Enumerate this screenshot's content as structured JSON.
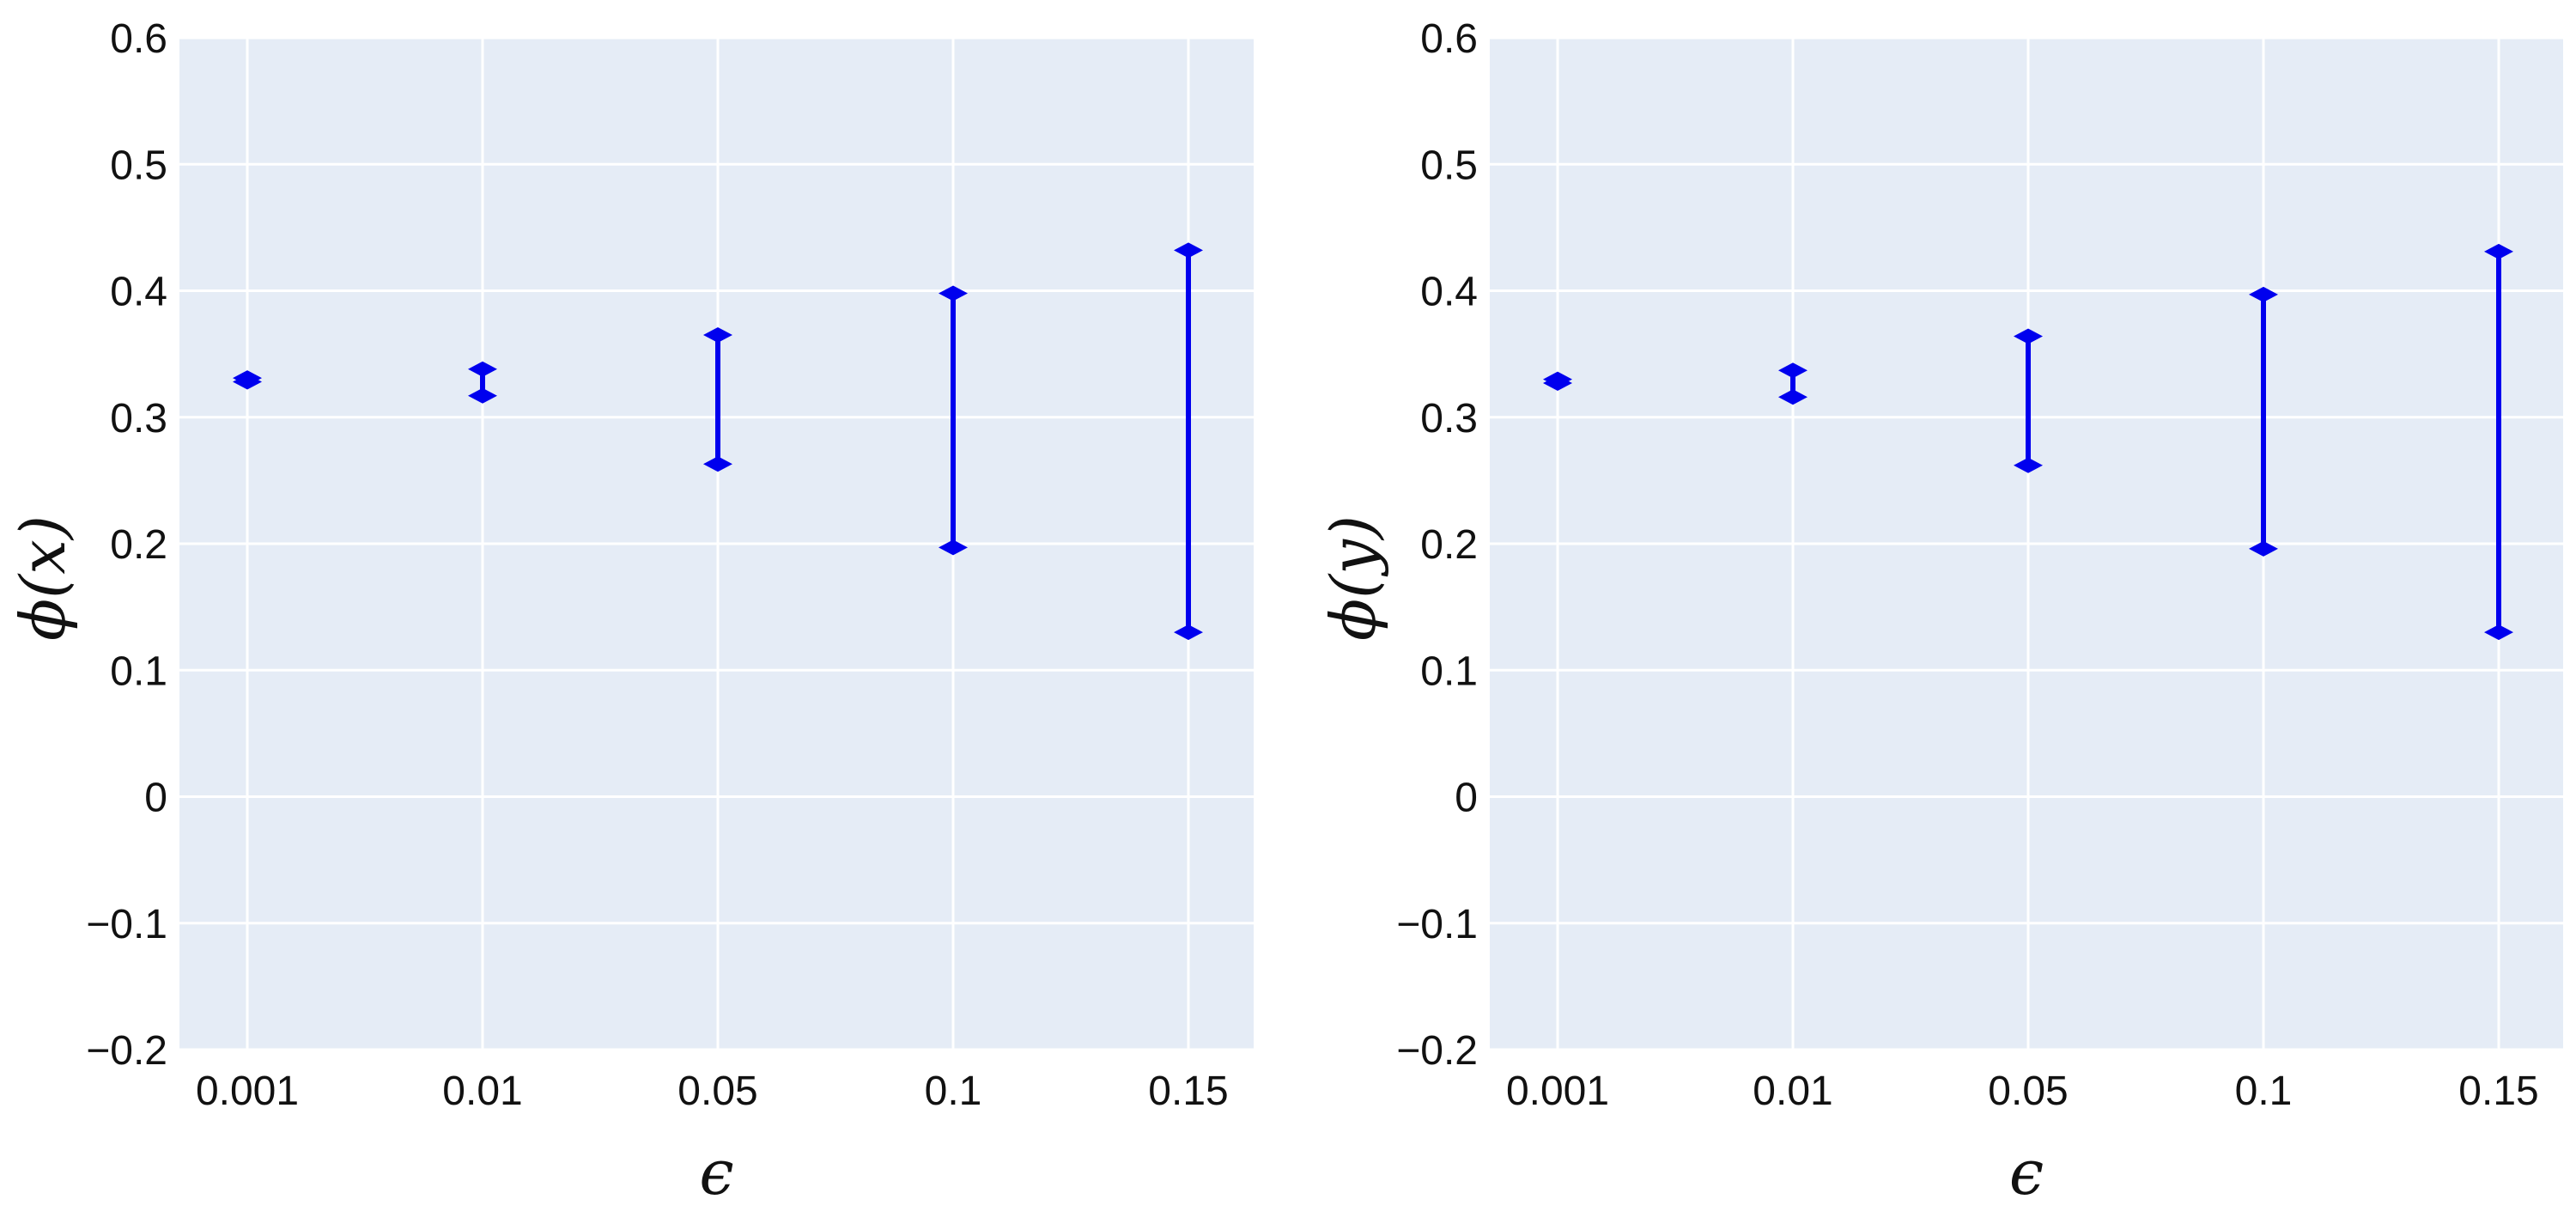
{
  "chart_data": [
    {
      "type": "errorbar",
      "xlabel": "ϵ",
      "ylabel": "ϕ(x)",
      "categories": [
        "0.001",
        "0.01",
        "0.05",
        "0.1",
        "0.15"
      ],
      "y_low": [
        0.328,
        0.317,
        0.263,
        0.197,
        0.13
      ],
      "y_high": [
        0.331,
        0.338,
        0.365,
        0.398,
        0.432
      ],
      "ylim": [
        -0.2,
        0.6
      ],
      "yticks": [
        -0.2,
        -0.1,
        0,
        0.1,
        0.2,
        0.3,
        0.4,
        0.5,
        0.6
      ],
      "ytick_labels": [
        "−0.2",
        "−0.1",
        "0",
        "0.1",
        "0.2",
        "0.3",
        "0.4",
        "0.5",
        "0.6"
      ],
      "grid": true,
      "color": "#0000ee",
      "background": "#e5ecf6"
    },
    {
      "type": "errorbar",
      "xlabel": "ϵ",
      "ylabel": "ϕ(y)",
      "categories": [
        "0.001",
        "0.01",
        "0.05",
        "0.1",
        "0.15"
      ],
      "y_low": [
        0.327,
        0.316,
        0.262,
        0.196,
        0.13
      ],
      "y_high": [
        0.33,
        0.337,
        0.364,
        0.397,
        0.431
      ],
      "ylim": [
        -0.2,
        0.6
      ],
      "yticks": [
        -0.2,
        -0.1,
        0,
        0.1,
        0.2,
        0.3,
        0.4,
        0.5,
        0.6
      ],
      "ytick_labels": [
        "−0.2",
        "−0.1",
        "0",
        "0.1",
        "0.2",
        "0.3",
        "0.4",
        "0.5",
        "0.6"
      ],
      "grid": true,
      "color": "#0000ee",
      "background": "#e5ecf6"
    }
  ]
}
